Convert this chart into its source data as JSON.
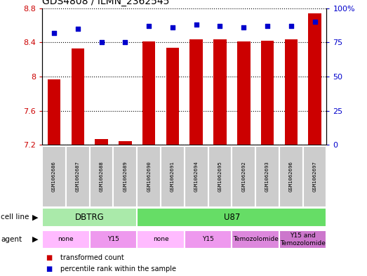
{
  "title": "GDS4808 / ILMN_2362545",
  "samples": [
    "GSM1062686",
    "GSM1062687",
    "GSM1062688",
    "GSM1062689",
    "GSM1062690",
    "GSM1062691",
    "GSM1062694",
    "GSM1062695",
    "GSM1062692",
    "GSM1062693",
    "GSM1062696",
    "GSM1062697"
  ],
  "bar_values": [
    7.97,
    8.33,
    7.27,
    7.24,
    8.41,
    8.34,
    8.44,
    8.44,
    8.41,
    8.42,
    8.44,
    8.74
  ],
  "percentile_values": [
    82,
    85,
    75,
    75,
    87,
    86,
    88,
    87,
    86,
    87,
    87,
    90
  ],
  "ylim": [
    7.2,
    8.8
  ],
  "yticks": [
    7.2,
    7.6,
    8.0,
    8.4,
    8.8
  ],
  "ytick_labels": [
    "7.2",
    "7.6",
    "8",
    "8.4",
    "8.8"
  ],
  "y2lim": [
    0,
    100
  ],
  "y2ticks": [
    0,
    25,
    50,
    75,
    100
  ],
  "y2tick_labels": [
    "0",
    "25",
    "50",
    "75",
    "100%"
  ],
  "bar_color": "#cc0000",
  "dot_color": "#0000cc",
  "bar_width": 0.55,
  "cell_line_data": [
    {
      "label": "DBTRG",
      "start": 0,
      "end": 3,
      "color": "#aaeaaa"
    },
    {
      "label": "U87",
      "start": 4,
      "end": 11,
      "color": "#66dd66"
    }
  ],
  "agent_data": [
    {
      "label": "none",
      "start": 0,
      "end": 1,
      "color": "#ffbbff"
    },
    {
      "label": "Y15",
      "start": 2,
      "end": 3,
      "color": "#ee99ee"
    },
    {
      "label": "none",
      "start": 4,
      "end": 5,
      "color": "#ffbbff"
    },
    {
      "label": "Y15",
      "start": 6,
      "end": 7,
      "color": "#ee99ee"
    },
    {
      "label": "Temozolomide",
      "start": 8,
      "end": 9,
      "color": "#dd88dd"
    },
    {
      "label": "Y15 and\nTemozolomide",
      "start": 10,
      "end": 11,
      "color": "#cc77cc"
    }
  ],
  "legend_items": [
    {
      "label": "transformed count",
      "color": "#cc0000"
    },
    {
      "label": "percentile rank within the sample",
      "color": "#0000cc"
    }
  ],
  "tick_label_color_left": "#cc0000",
  "tick_label_color_right": "#0000cc",
  "sample_box_color": "#cccccc",
  "sample_box_edge": "#ffffff"
}
